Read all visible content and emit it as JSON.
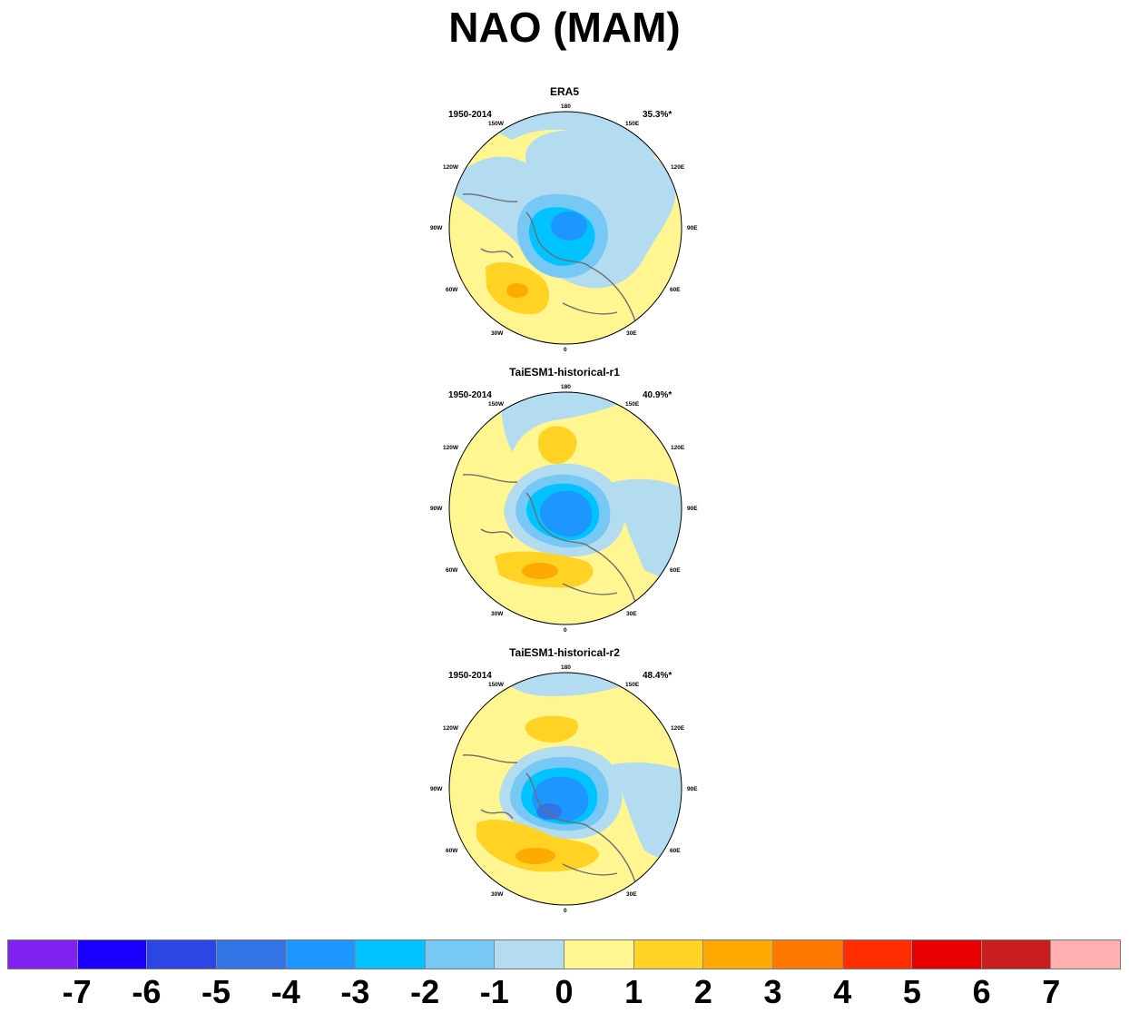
{
  "title": "NAO (MAM)",
  "panels": [
    {
      "name": "ERA5",
      "period": "1950-2014",
      "variance": "35.3%*"
    },
    {
      "name": "TaiESM1-historical-r1",
      "period": "1950-2014",
      "variance": "40.9%*"
    },
    {
      "name": "TaiESM1-historical-r2",
      "period": "1950-2014",
      "variance": "48.4%*"
    }
  ],
  "longitude_labels": [
    "180",
    "150W",
    "150E",
    "120W",
    "120E",
    "90W",
    "90E",
    "60W",
    "60E",
    "30W",
    "30E",
    "0"
  ],
  "colorbar": {
    "colors": [
      "#8021f0",
      "#1c00ff",
      "#2c46e6",
      "#3273e6",
      "#1e96ff",
      "#00c3ff",
      "#78c8f5",
      "#b4dcf0",
      "#fff591",
      "#ffd223",
      "#ffaa00",
      "#ff7800",
      "#ff2d00",
      "#e60000",
      "#c81e1e",
      "#ffafaf"
    ],
    "labels": [
      "-7",
      "-6",
      "-5",
      "-4",
      "-3",
      "-2",
      "-1",
      "0",
      "1",
      "2",
      "3",
      "4",
      "5",
      "6",
      "7"
    ]
  }
}
